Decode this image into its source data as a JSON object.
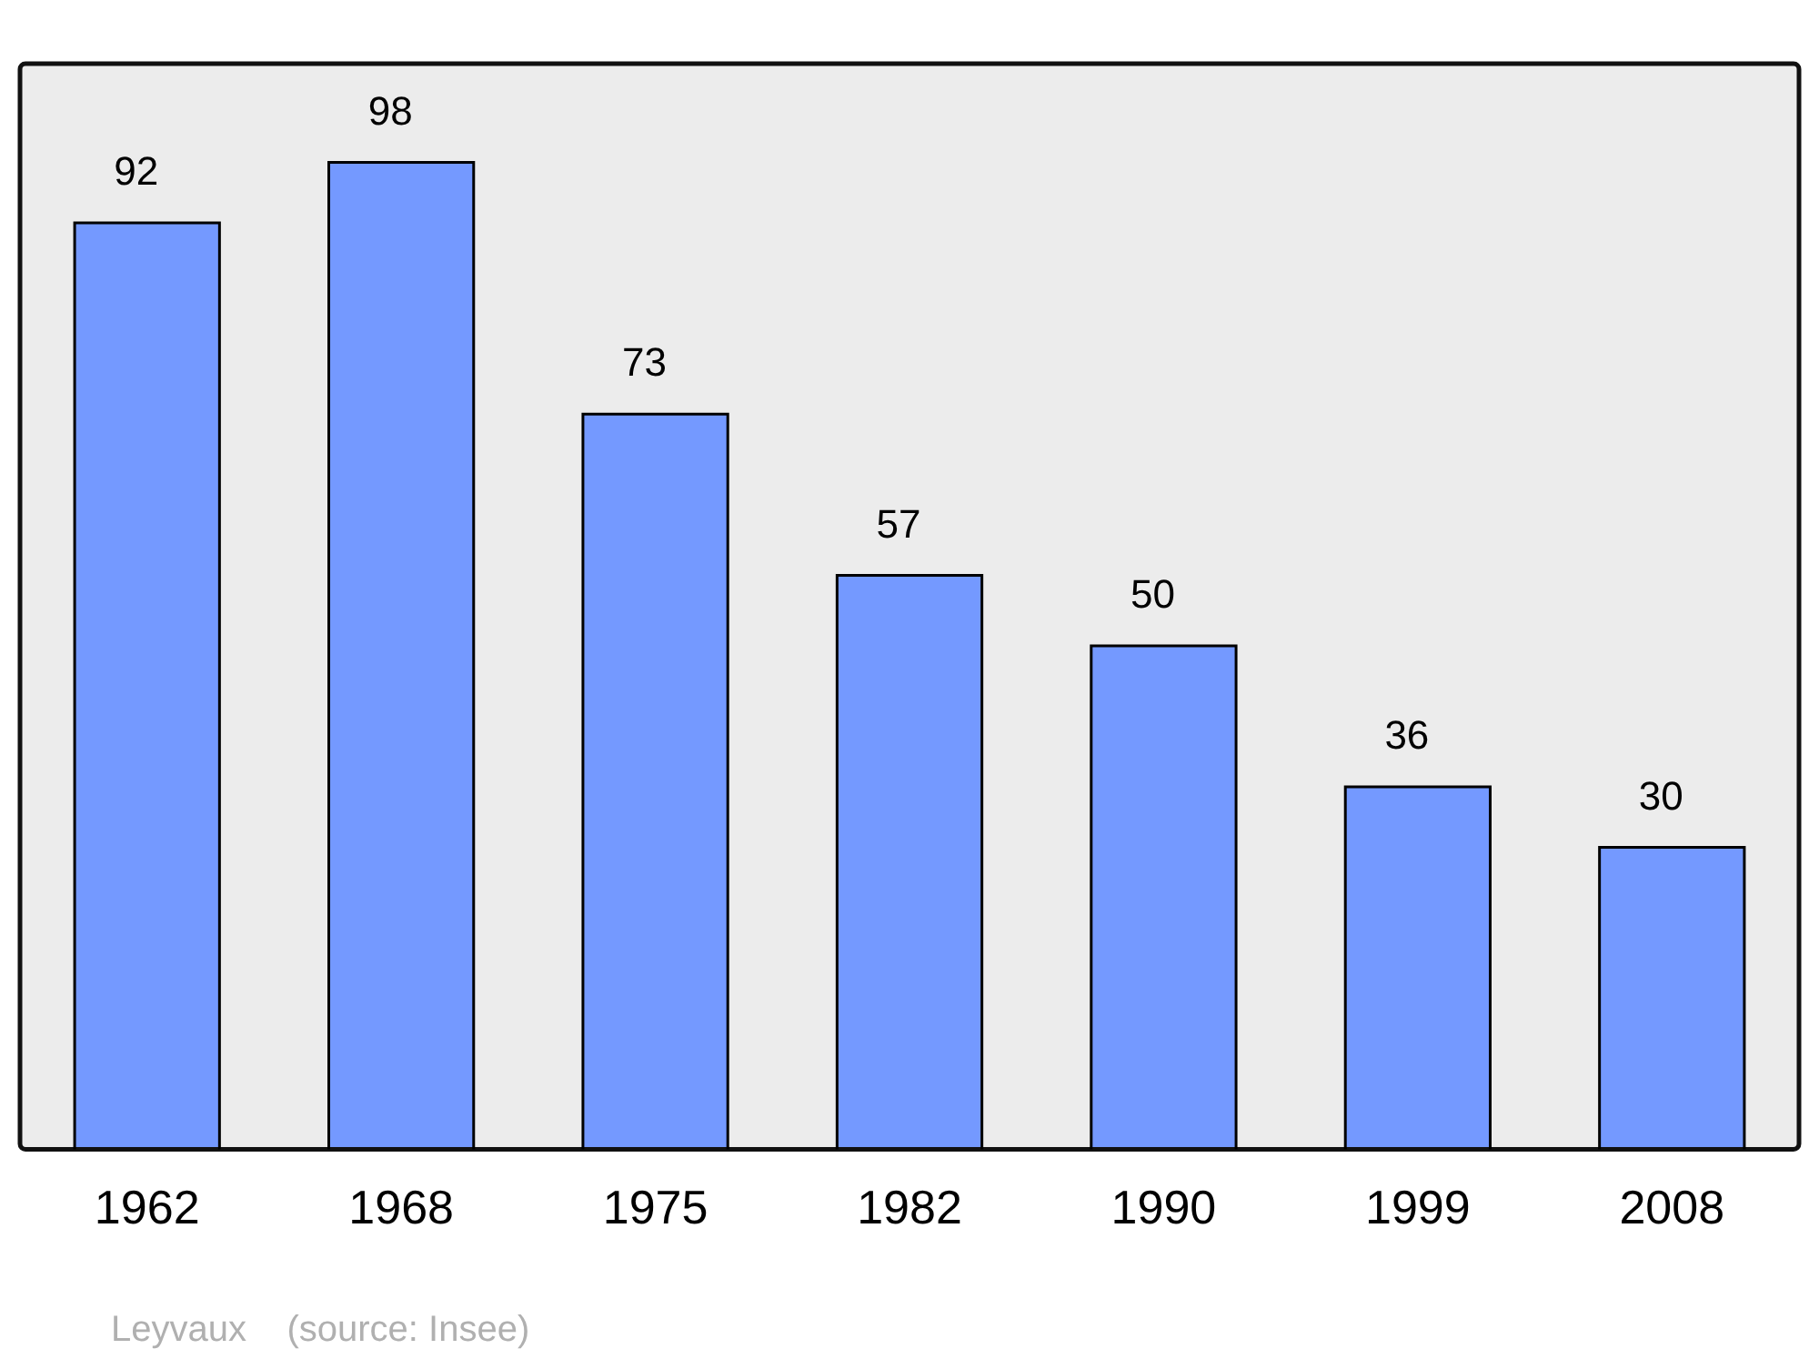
{
  "chart_data": {
    "type": "bar",
    "categories": [
      "1962",
      "1968",
      "1975",
      "1982",
      "1990",
      "1999",
      "2008"
    ],
    "values": [
      92,
      98,
      73,
      57,
      50,
      36,
      30
    ],
    "color": "#7499ff",
    "data_labels": true,
    "grid": false,
    "legend": false,
    "annotations": [
      "Leyvaux    (source: Insee)"
    ]
  }
}
